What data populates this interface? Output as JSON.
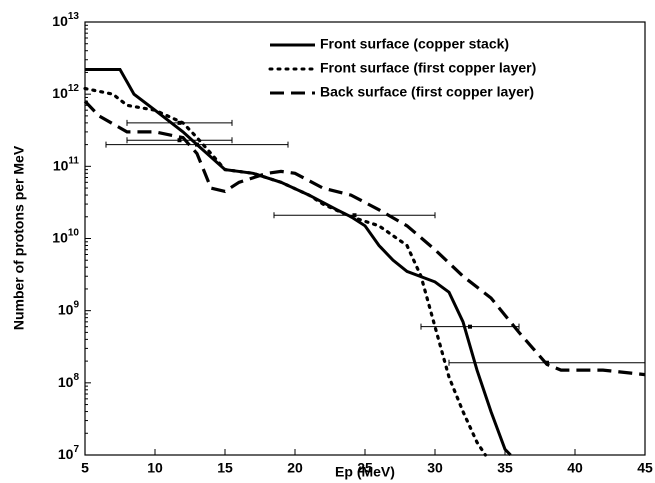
{
  "chart_data": {
    "type": "line",
    "xlabel": "Ep (MeV)",
    "ylabel": "Number of protons per MeV",
    "log_y": true,
    "xlim": [
      5,
      45
    ],
    "xticks": [
      5,
      10,
      15,
      20,
      25,
      30,
      35,
      40,
      45
    ],
    "ylim": [
      10000000.0,
      10000000000000.0
    ],
    "yticks": [
      {
        "value": 10000000.0,
        "label": "10^7"
      },
      {
        "value": 100000000.0,
        "label": "10^8"
      },
      {
        "value": 1000000000.0,
        "label": "10^9"
      },
      {
        "value": 10000000000.0,
        "label": "10^10"
      },
      {
        "value": 100000000000.0,
        "label": "10^11"
      },
      {
        "value": 1000000000000.0,
        "label": "10^12"
      },
      {
        "value": 10000000000000.0,
        "label": "10^13"
      }
    ],
    "legend": "upper right",
    "series": [
      {
        "name": "Front surface (copper stack)",
        "color": "#000000",
        "style": "solid",
        "x": [
          5,
          7.5,
          8.5,
          10,
          12,
          13,
          15,
          17,
          19,
          21,
          23,
          24,
          25,
          26,
          27,
          28,
          30,
          31,
          32,
          33,
          34,
          35,
          35.4
        ],
        "values": [
          2200000000000.0,
          2200000000000.0,
          1000000000000.0,
          600000000000.0,
          300000000000.0,
          200000000000.0,
          90000000000.0,
          80000000000.0,
          60000000000.0,
          40000000000.0,
          25000000000.0,
          20000000000.0,
          15000000000.0,
          8000000000.0,
          5000000000.0,
          3500000000.0,
          2500000000.0,
          1800000000.0,
          700000000.0,
          150000000.0,
          40000000.0,
          12000000.0,
          10000000.0
        ]
      },
      {
        "name": "Front surface (first copper layer)",
        "color": "#000000",
        "style": "dotted",
        "x": [
          5,
          7,
          8,
          10,
          12,
          13,
          14,
          15,
          17,
          19,
          21,
          22,
          24,
          26,
          28,
          29,
          30,
          31,
          32,
          33,
          33.6
        ],
        "values": [
          1200000000000.0,
          1000000000000.0,
          700000000000.0,
          600000000000.0,
          400000000000.0,
          250000000000.0,
          150000000000.0,
          90000000000.0,
          80000000000.0,
          60000000000.0,
          40000000000.0,
          30000000000.0,
          20000000000.0,
          15000000000.0,
          8000000000.0,
          3000000000.0,
          600000000.0,
          120000000.0,
          40000000.0,
          15000000.0,
          10000000.0
        ]
      },
      {
        "name": "Back surface (first copper layer)",
        "color": "#000000",
        "style": "dashed",
        "x": [
          5,
          6,
          8,
          10,
          12,
          13,
          14,
          15,
          16,
          18,
          19,
          20,
          22,
          24,
          26,
          28,
          30,
          32,
          34,
          36,
          37,
          38,
          39,
          42,
          45
        ],
        "values": [
          800000000000.0,
          500000000000.0,
          300000000000.0,
          300000000000.0,
          250000000000.0,
          150000000000.0,
          50000000000.0,
          45000000000.0,
          60000000000.0,
          80000000000.0,
          85000000000.0,
          80000000000.0,
          50000000000.0,
          40000000000.0,
          25000000000.0,
          15000000000.0,
          7000000000.0,
          3000000000.0,
          1500000000.0,
          500000000.0,
          300000000.0,
          180000000.0,
          150000000.0,
          150000000.0,
          130000000.0
        ]
      }
    ],
    "error_bars": {
      "x": [
        11.75,
        11.75,
        13,
        24.25,
        32.5,
        38
      ],
      "values": [
        400000000000.0,
        230000000000.0,
        200000000000.0,
        21000000000.0,
        600000000.0,
        190000000.0
      ],
      "xerr": [
        3.75,
        3.75,
        6.5,
        5.75,
        3.5,
        7
      ]
    }
  }
}
